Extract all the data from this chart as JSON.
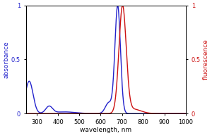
{
  "xlim": [
    250,
    1000
  ],
  "ylim": [
    0,
    1.0
  ],
  "xlabel": "wavelength, nm",
  "ylabel_left": "absorbance",
  "ylabel_right": "fluorescence",
  "blue_color": "#2222cc",
  "red_color": "#cc1111",
  "bg_color": "#ffffff",
  "xticks": [
    300,
    400,
    500,
    600,
    700,
    800,
    900,
    1000
  ],
  "yticks_left": [
    0,
    0.5,
    1.0
  ],
  "yticks_right": [
    0,
    0.5,
    1.0
  ],
  "figsize": [
    3.0,
    1.93
  ],
  "dpi": 100,
  "blue_peaks": [
    {
      "mu": 680,
      "sigma": 13,
      "amp": 1.0
    },
    {
      "mu": 638,
      "sigma": 16,
      "amp": 0.1
    },
    {
      "mu": 357,
      "sigma": 16,
      "amp": 0.065
    },
    {
      "mu": 263,
      "sigma": 18,
      "amp": 0.3
    },
    {
      "mu": 430,
      "sigma": 50,
      "amp": 0.015
    }
  ],
  "red_peaks": [
    {
      "mu": 703,
      "sigma": 17,
      "amp": 1.0
    },
    {
      "mu": 755,
      "sigma": 35,
      "amp": 0.04
    }
  ],
  "xlabel_fontsize": 6.5,
  "ylabel_fontsize": 6.5,
  "tick_labelsize": 6,
  "linewidth": 1.0
}
